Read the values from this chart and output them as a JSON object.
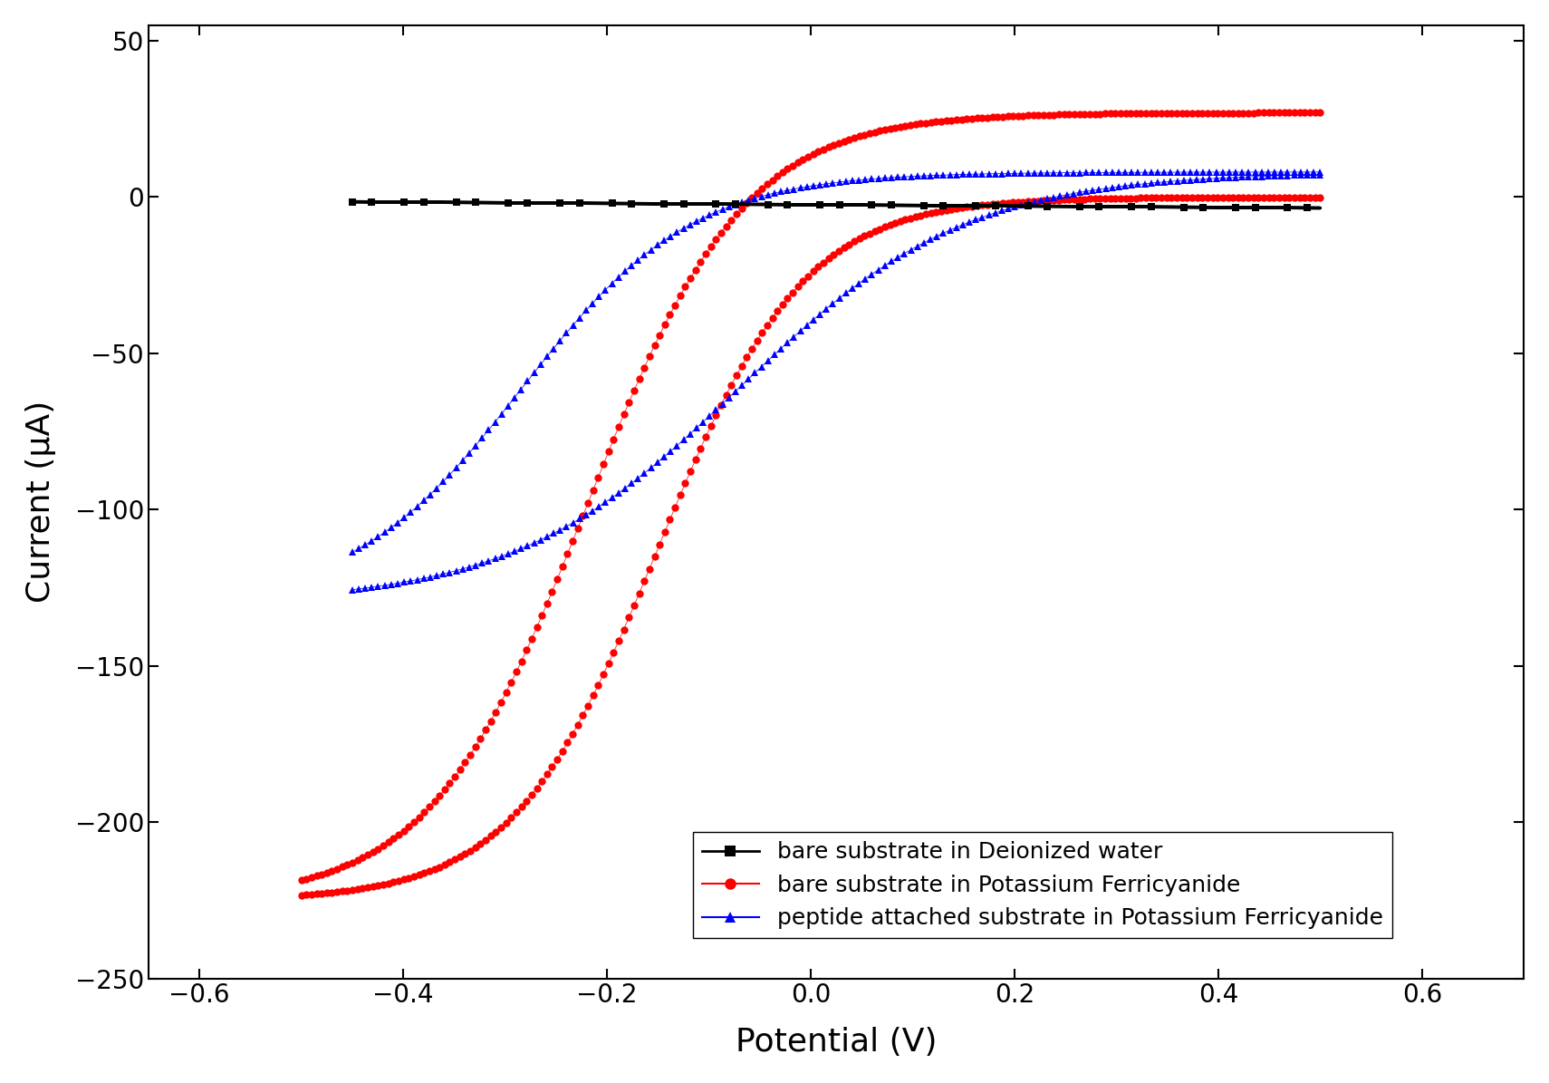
{
  "xlabel": "Potential (V)",
  "ylabel": "Current (μA)",
  "xlim": [
    -0.65,
    0.7
  ],
  "ylim": [
    -250,
    55
  ],
  "xticks": [
    -0.6,
    -0.4,
    -0.2,
    0.0,
    0.2,
    0.4,
    0.6
  ],
  "yticks": [
    -250,
    -200,
    -150,
    -100,
    -50,
    0,
    50
  ],
  "bg_color": "#ffffff",
  "legend_labels": [
    "bare substrate in Deionized water",
    "bare substrate in Potassium Ferricyanide",
    "peptide attached substrate in Potassium Ferricyanide"
  ],
  "colors": [
    "#000000",
    "#ff0000",
    "#0000ff"
  ],
  "markers": [
    "s",
    "o",
    "^"
  ],
  "markersize": [
    7,
    7,
    7
  ]
}
